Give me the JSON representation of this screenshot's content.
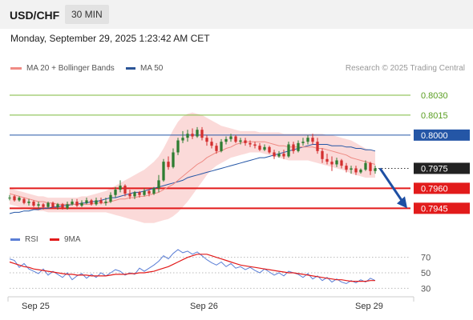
{
  "header": {
    "symbol": "USD/CHF",
    "timeframe": "30 MIN"
  },
  "datetime": "Monday, September 29, 2025 1:23:42 AM CET",
  "legend": {
    "ma20": {
      "label": "MA 20 + Bollinger Bands",
      "color": "#f08b84"
    },
    "ma50": {
      "label": "MA 50",
      "color": "#2b5597"
    }
  },
  "research": "Research © 2025 Trading Central",
  "colors": {
    "up": "#2e7d32",
    "down": "#d32f2f",
    "resistance": "#7cba3b",
    "pivot": "#2456a6",
    "support": "#e21b1b",
    "bb_fill": "#fad4d2",
    "rsi": "#5b7fd6",
    "rsi_ma": "#e21b1b",
    "arrow": "#1e4fa3"
  },
  "chart_data": [
    {
      "type": "candlestick",
      "ylim": [
        0.7935,
        0.8045
      ],
      "x_labels": [
        "Sep 25",
        "Sep 26",
        "Sep 29"
      ],
      "levels": [
        {
          "value": 0.803,
          "label": "0.8030",
          "kind": "resistance"
        },
        {
          "value": 0.8015,
          "label": "0.8015",
          "kind": "resistance"
        },
        {
          "value": 0.8,
          "label": "0.8000",
          "kind": "pivot"
        },
        {
          "value": 0.7975,
          "label": "0.7975",
          "kind": "last"
        },
        {
          "value": 0.796,
          "label": "0.7960",
          "kind": "support"
        },
        {
          "value": 0.7945,
          "label": "0.7945",
          "kind": "support"
        }
      ],
      "ohlc": [
        [
          0.7953,
          0.7955,
          0.7951,
          0.7953
        ],
        [
          0.7954,
          0.7955,
          0.795,
          0.7951
        ],
        [
          0.7951,
          0.7954,
          0.795,
          0.7953
        ],
        [
          0.7952,
          0.7953,
          0.7948,
          0.7949
        ],
        [
          0.7949,
          0.7952,
          0.7947,
          0.795
        ],
        [
          0.795,
          0.7951,
          0.7946,
          0.7947
        ],
        [
          0.7947,
          0.795,
          0.7945,
          0.7948
        ],
        [
          0.7948,
          0.7949,
          0.7944,
          0.7946
        ],
        [
          0.7946,
          0.795,
          0.7945,
          0.7949
        ],
        [
          0.7949,
          0.795,
          0.7945,
          0.7946
        ],
        [
          0.7946,
          0.7949,
          0.7944,
          0.7948
        ],
        [
          0.7948,
          0.7949,
          0.7944,
          0.7945
        ],
        [
          0.7945,
          0.795,
          0.7944,
          0.7948
        ],
        [
          0.7948,
          0.7952,
          0.7947,
          0.795
        ],
        [
          0.795,
          0.7952,
          0.7946,
          0.7947
        ],
        [
          0.7947,
          0.7951,
          0.7946,
          0.7949
        ],
        [
          0.7949,
          0.7953,
          0.7948,
          0.7951
        ],
        [
          0.7951,
          0.7952,
          0.7947,
          0.7948
        ],
        [
          0.7948,
          0.7953,
          0.7947,
          0.7951
        ],
        [
          0.7951,
          0.7953,
          0.7948,
          0.7949
        ],
        [
          0.7949,
          0.7953,
          0.7947,
          0.795
        ],
        [
          0.795,
          0.7957,
          0.7949,
          0.7955
        ],
        [
          0.7955,
          0.7961,
          0.7953,
          0.7959
        ],
        [
          0.7959,
          0.7966,
          0.7957,
          0.7962
        ],
        [
          0.7962,
          0.7963,
          0.7954,
          0.7956
        ],
        [
          0.7956,
          0.7959,
          0.7952,
          0.7954
        ],
        [
          0.7954,
          0.7958,
          0.7952,
          0.7957
        ],
        [
          0.7957,
          0.7958,
          0.7953,
          0.7955
        ],
        [
          0.7955,
          0.796,
          0.7954,
          0.7958
        ],
        [
          0.7958,
          0.7959,
          0.7954,
          0.7956
        ],
        [
          0.7956,
          0.7961,
          0.7955,
          0.796
        ],
        [
          0.796,
          0.797,
          0.7957,
          0.7966
        ],
        [
          0.7966,
          0.7982,
          0.7965,
          0.798
        ],
        [
          0.798,
          0.7984,
          0.7974,
          0.7976
        ],
        [
          0.7976,
          0.799,
          0.7975,
          0.7987
        ],
        [
          0.7987,
          0.7998,
          0.7985,
          0.7996
        ],
        [
          0.7996,
          0.8003,
          0.7994,
          0.7998
        ],
        [
          0.7998,
          0.8004,
          0.7995,
          0.8001
        ],
        [
          0.8001,
          0.8005,
          0.7997,
          0.7999
        ],
        [
          0.7999,
          0.8006,
          0.7998,
          0.8004
        ],
        [
          0.8004,
          0.8006,
          0.7996,
          0.7998
        ],
        [
          0.7998,
          0.8,
          0.7992,
          0.7995
        ],
        [
          0.7995,
          0.7998,
          0.799,
          0.7992
        ],
        [
          0.7992,
          0.7994,
          0.7986,
          0.7988
        ],
        [
          0.7988,
          0.7997,
          0.7987,
          0.7995
        ],
        [
          0.7995,
          0.7999,
          0.7993,
          0.7997
        ],
        [
          0.7997,
          0.8001,
          0.7995,
          0.7999
        ],
        [
          0.7999,
          0.8,
          0.7994,
          0.7995
        ],
        [
          0.7995,
          0.7998,
          0.7993,
          0.7996
        ],
        [
          0.7996,
          0.7998,
          0.7992,
          0.7994
        ],
        [
          0.7994,
          0.7996,
          0.7991,
          0.7993
        ],
        [
          0.7993,
          0.7995,
          0.799,
          0.7992
        ],
        [
          0.7992,
          0.7994,
          0.7988,
          0.7989
        ],
        [
          0.7989,
          0.7993,
          0.7988,
          0.7991
        ],
        [
          0.7991,
          0.7992,
          0.7986,
          0.7987
        ],
        [
          0.7987,
          0.7989,
          0.7982,
          0.7984
        ],
        [
          0.7984,
          0.7988,
          0.7983,
          0.7986
        ],
        [
          0.7986,
          0.7989,
          0.7982,
          0.7984
        ],
        [
          0.7984,
          0.7995,
          0.7983,
          0.7993
        ],
        [
          0.7993,
          0.7995,
          0.7986,
          0.7988
        ],
        [
          0.7988,
          0.7996,
          0.7987,
          0.7994
        ],
        [
          0.7994,
          0.7998,
          0.7992,
          0.7995
        ],
        [
          0.7995,
          0.8,
          0.7993,
          0.7998
        ],
        [
          0.7998,
          0.8001,
          0.7993,
          0.7995
        ],
        [
          0.7995,
          0.7998,
          0.7986,
          0.7988
        ],
        [
          0.7988,
          0.799,
          0.7979,
          0.7982
        ],
        [
          0.7982,
          0.7986,
          0.7978,
          0.798
        ],
        [
          0.798,
          0.7984,
          0.7973,
          0.7978
        ],
        [
          0.7978,
          0.7983,
          0.7976,
          0.7981
        ],
        [
          0.7981,
          0.7982,
          0.7975,
          0.7977
        ],
        [
          0.7977,
          0.7979,
          0.7972,
          0.7974
        ],
        [
          0.7974,
          0.7977,
          0.7971,
          0.7975
        ],
        [
          0.7975,
          0.7977,
          0.797,
          0.7972
        ],
        [
          0.7972,
          0.7975,
          0.7971,
          0.7974
        ],
        [
          0.7974,
          0.7981,
          0.7973,
          0.7979
        ],
        [
          0.7979,
          0.798,
          0.797,
          0.7973
        ],
        [
          0.7973,
          0.7977,
          0.7971,
          0.7975
        ]
      ],
      "ma20": [
        0.7956,
        0.7955,
        0.7954,
        0.7953,
        0.7952,
        0.7951,
        0.795,
        0.795,
        0.7949,
        0.7949,
        0.7948,
        0.7948,
        0.7948,
        0.7948,
        0.7948,
        0.7948,
        0.7948,
        0.7948,
        0.7949,
        0.7949,
        0.7949,
        0.795,
        0.7951,
        0.7952,
        0.7952,
        0.7953,
        0.7953,
        0.7954,
        0.7954,
        0.7955,
        0.7956,
        0.7957,
        0.7959,
        0.7961,
        0.7963,
        0.7966,
        0.7969,
        0.7972,
        0.7975,
        0.7978,
        0.798,
        0.7983,
        0.7985,
        0.7987,
        0.7988,
        0.799,
        0.7991,
        0.7993,
        0.7994,
        0.7995,
        0.7995,
        0.7995,
        0.7995,
        0.7995,
        0.7994,
        0.7993,
        0.7992,
        0.7992,
        0.7991,
        0.7991,
        0.7991,
        0.7991,
        0.7991,
        0.7991,
        0.799,
        0.799,
        0.7989,
        0.7988,
        0.7987,
        0.7986,
        0.7985,
        0.7983,
        0.7982,
        0.7981,
        0.798,
        0.7979,
        0.7978
      ],
      "ma50": [
        0.7941,
        0.7942,
        0.7942,
        0.7943,
        0.7943,
        0.7944,
        0.7944,
        0.7945,
        0.7945,
        0.7946,
        0.7946,
        0.7947,
        0.7947,
        0.7948,
        0.7948,
        0.7949,
        0.7949,
        0.795,
        0.795,
        0.7951,
        0.7952,
        0.7953,
        0.7953,
        0.7954,
        0.7955,
        0.7956,
        0.7957,
        0.7957,
        0.7958,
        0.7959,
        0.796,
        0.7961,
        0.7962,
        0.7963,
        0.7964,
        0.7965,
        0.7966,
        0.7968,
        0.7969,
        0.797,
        0.7971,
        0.7972,
        0.7973,
        0.7974,
        0.7975,
        0.7976,
        0.7977,
        0.7978,
        0.7979,
        0.798,
        0.7981,
        0.7982,
        0.7983,
        0.7983,
        0.7984,
        0.7985,
        0.7986,
        0.7987,
        0.7988,
        0.7989,
        0.799,
        0.7991,
        0.7992,
        0.7993,
        0.7993,
        0.7993,
        0.7993,
        0.7992,
        0.7992,
        0.7992,
        0.7991,
        0.7991,
        0.799,
        0.799,
        0.7989,
        0.7989,
        0.7988
      ],
      "bb_upper": [
        0.796,
        0.7959,
        0.7958,
        0.7957,
        0.7956,
        0.7955,
        0.7954,
        0.7954,
        0.7953,
        0.7953,
        0.7953,
        0.7953,
        0.7953,
        0.7953,
        0.7953,
        0.7954,
        0.7954,
        0.7955,
        0.7956,
        0.7957,
        0.7958,
        0.796,
        0.7962,
        0.7964,
        0.7966,
        0.7968,
        0.797,
        0.7972,
        0.7974,
        0.7977,
        0.798,
        0.7984,
        0.799,
        0.7997,
        0.8004,
        0.801,
        0.8014,
        0.8016,
        0.8017,
        0.8016,
        0.8015,
        0.8013,
        0.8011,
        0.8009,
        0.8007,
        0.8006,
        0.8005,
        0.8004,
        0.8003,
        0.8003,
        0.8003,
        0.8003,
        0.8002,
        0.8002,
        0.8002,
        0.8002,
        0.8002,
        0.8001,
        0.8001,
        0.8001,
        0.8001,
        0.8001,
        0.8001,
        0.8001,
        0.8001,
        0.8001,
        0.8,
        0.8,
        0.7999,
        0.7998,
        0.7997,
        0.7996,
        0.7994,
        0.7992,
        0.799,
        0.7989,
        0.7988
      ],
      "bb_lower": [
        0.7948,
        0.7947,
        0.7946,
        0.7945,
        0.7944,
        0.7944,
        0.7943,
        0.7943,
        0.7942,
        0.7942,
        0.7942,
        0.7942,
        0.7942,
        0.7942,
        0.7942,
        0.7942,
        0.7942,
        0.7942,
        0.7942,
        0.7942,
        0.7942,
        0.7941,
        0.794,
        0.7939,
        0.7938,
        0.7937,
        0.7936,
        0.7935,
        0.7934,
        0.7934,
        0.7934,
        0.7935,
        0.7936,
        0.7937,
        0.7939,
        0.7942,
        0.7946,
        0.795,
        0.7955,
        0.796,
        0.7965,
        0.797,
        0.7974,
        0.7977,
        0.7979,
        0.7981,
        0.7983,
        0.7984,
        0.7985,
        0.7986,
        0.7987,
        0.7987,
        0.7987,
        0.7986,
        0.7985,
        0.7984,
        0.7983,
        0.7982,
        0.7981,
        0.7981,
        0.7981,
        0.7981,
        0.7981,
        0.798,
        0.7979,
        0.7978,
        0.7977,
        0.7976,
        0.7975,
        0.7974,
        0.7973,
        0.7971,
        0.797,
        0.7969,
        0.7968,
        0.7968,
        0.7968
      ],
      "projection": {
        "from": 0.7975,
        "to": 0.7945
      }
    },
    {
      "type": "line",
      "legend": [
        "RSI",
        "9MA"
      ],
      "ylim": [
        20,
        80
      ],
      "y_ticks": [
        70,
        50,
        30
      ],
      "rsi": [
        68,
        66,
        57,
        62,
        55,
        52,
        49,
        55,
        47,
        52,
        48,
        44,
        50,
        41,
        46,
        49,
        43,
        48,
        44,
        50,
        46,
        50,
        54,
        52,
        47,
        50,
        48,
        56,
        52,
        56,
        60,
        65,
        72,
        68,
        75,
        80,
        76,
        78,
        74,
        77,
        72,
        67,
        63,
        60,
        64,
        58,
        62,
        56,
        58,
        54,
        57,
        53,
        50,
        55,
        51,
        47,
        50,
        46,
        52,
        50,
        48,
        44,
        49,
        42,
        46,
        40,
        44,
        38,
        42,
        38,
        36,
        40,
        37,
        41,
        38,
        43,
        40
      ],
      "ma9": [
        64,
        62,
        60,
        58,
        57,
        55,
        54,
        53,
        52,
        51,
        50,
        49,
        48,
        48,
        47,
        47,
        47,
        46,
        46,
        46,
        46,
        47,
        48,
        48,
        48,
        49,
        49,
        50,
        50,
        51,
        52,
        54,
        56,
        58,
        61,
        64,
        67,
        70,
        72,
        74,
        74,
        74,
        72,
        70,
        68,
        66,
        64,
        62,
        60,
        59,
        58,
        57,
        56,
        55,
        54,
        53,
        52,
        51,
        50,
        50,
        49,
        48,
        47,
        46,
        45,
        44,
        43,
        42,
        41,
        41,
        40,
        39,
        39,
        39,
        39,
        40,
        40
      ]
    }
  ]
}
